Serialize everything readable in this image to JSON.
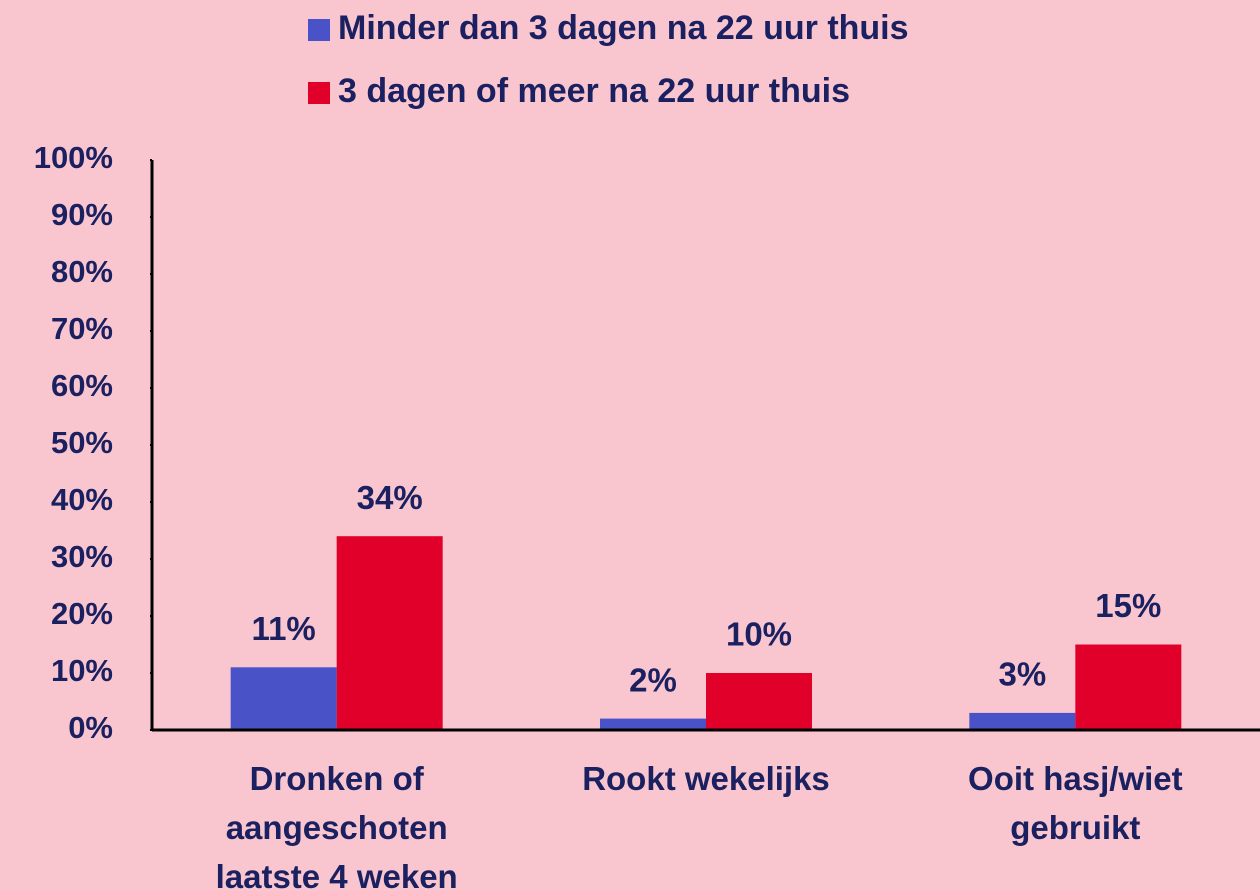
{
  "chart_data": {
    "type": "bar",
    "categories": [
      "Dronken of aangeschoten laatste 4 weken",
      "Rookt wekelijks",
      "Ooit hasj/wiet gebruikt"
    ],
    "series": [
      {
        "name": "Minder dan 3 dagen na 22 uur thuis",
        "color": "#4a52c8",
        "values": [
          11,
          2,
          3
        ],
        "value_labels": [
          "11%",
          "2%",
          "3%"
        ]
      },
      {
        "name": "3 dagen of meer na 22 uur thuis",
        "color": "#e0002a",
        "values": [
          34,
          10,
          15
        ],
        "value_labels": [
          "34%",
          "10%",
          "15%"
        ]
      }
    ],
    "ylim": [
      0,
      100
    ],
    "yticks": [
      {
        "value": 0,
        "label": "0%"
      },
      {
        "value": 10,
        "label": "10%"
      },
      {
        "value": 20,
        "label": "20%"
      },
      {
        "value": 30,
        "label": "30%"
      },
      {
        "value": 40,
        "label": "40%"
      },
      {
        "value": 50,
        "label": "50%"
      },
      {
        "value": 60,
        "label": "60%"
      },
      {
        "value": 70,
        "label": "70%"
      },
      {
        "value": 80,
        "label": "80%"
      },
      {
        "value": 90,
        "label": "90%"
      },
      {
        "value": 100,
        "label": "100%"
      }
    ],
    "grid": false
  }
}
